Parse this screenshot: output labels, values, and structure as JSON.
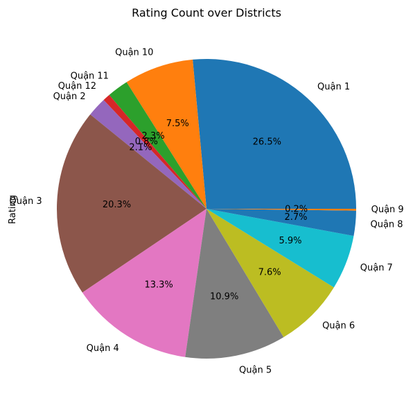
{
  "chart_data": {
    "type": "pie",
    "title": "Rating Count over Districts",
    "ylabel": "Rating",
    "start_angle_deg": 0,
    "direction": "counterclockwise",
    "categories": [
      "Quận 1",
      "Quận 10",
      "Quận 11",
      "Quận 12",
      "Quận 2",
      "Quận 3",
      "Quận 4",
      "Quận 5",
      "Quận 6",
      "Quận 7",
      "Quận 8",
      "Quận 9"
    ],
    "percent_labels": [
      "26.5%",
      "7.5%",
      "2.3%",
      "0.8%",
      "2.1%",
      "20.3%",
      "13.3%",
      "10.9%",
      "7.6%",
      "5.9%",
      "2.7%",
      "0.2%"
    ],
    "values": [
      26.5,
      7.5,
      2.3,
      0.8,
      2.1,
      20.3,
      13.3,
      10.9,
      7.6,
      5.9,
      2.7,
      0.2
    ],
    "colors": [
      "#1f77b4",
      "#ff7f0e",
      "#2ca02c",
      "#d62728",
      "#9467bd",
      "#8c564b",
      "#e377c2",
      "#7f7f7f",
      "#bcbd22",
      "#17becf",
      "#1f77b4",
      "#ff7f0e"
    ]
  }
}
